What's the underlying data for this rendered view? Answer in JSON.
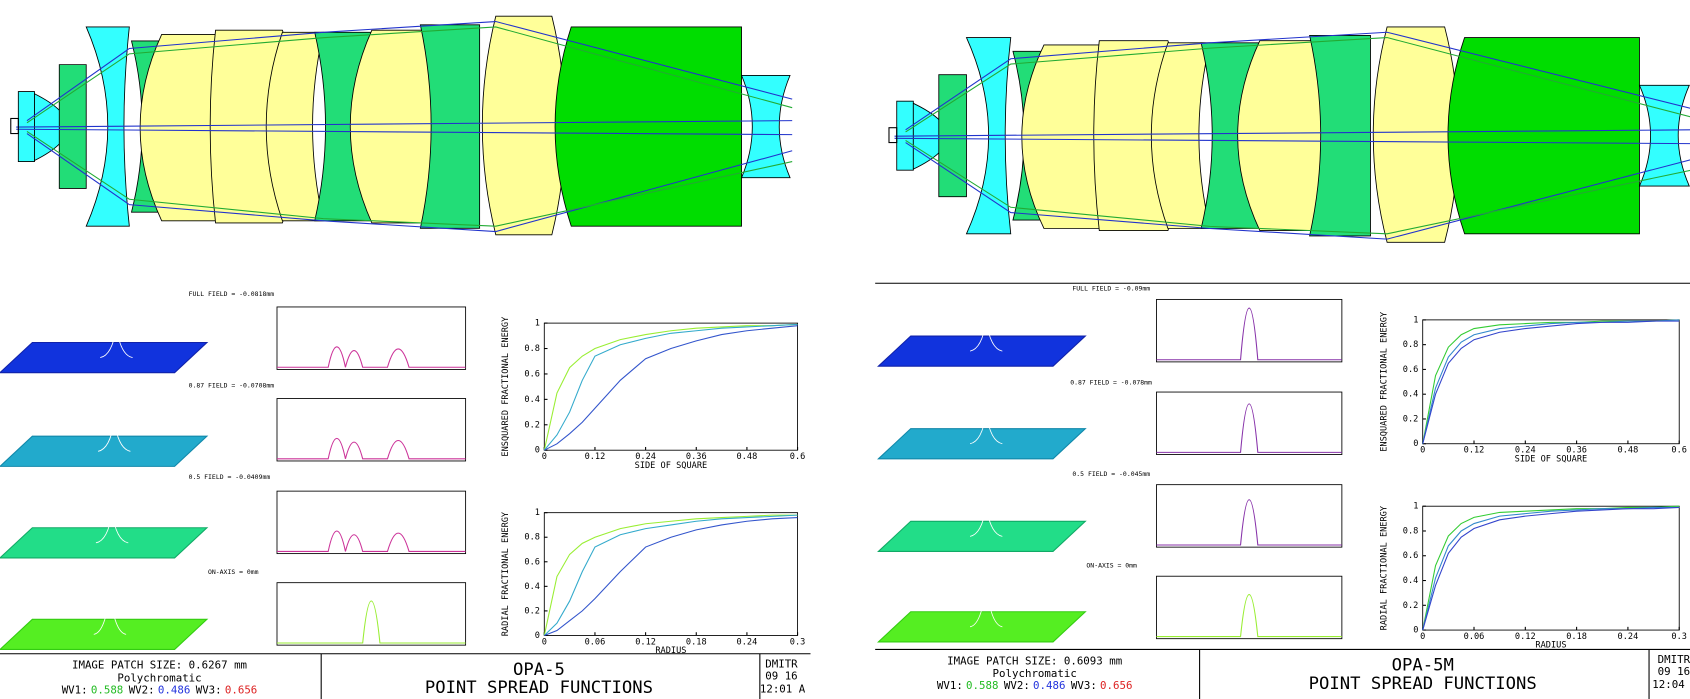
{
  "panels": [
    {
      "fields": [
        "FULL FIELD = -0.0818mm",
        "0.87 FIELD = -0.0708mm",
        "0.5 FIELD = -0.0409mm",
        "ON-AXIS = 0mm"
      ],
      "footer": {
        "patch": "IMAGE PATCH SIZE: 0.6267 mm",
        "mode": "Polychromatic",
        "wavelengths": [
          {
            "label": "WV1:",
            "value": "0.588",
            "color": "#22bb22"
          },
          {
            "label": "WV2:",
            "value": "0.486",
            "color": "#2233dd"
          },
          {
            "label": "WV3:",
            "value": "0.656",
            "color": "#dd2222"
          }
        ],
        "title": "OPA-5",
        "subtitle": "POINT SPREAD FUNCTIONS",
        "author": "DMITR",
        "date": "09  16",
        "time": "12:01 A"
      }
    },
    {
      "fields": [
        "FULL FIELD = -0.09mm",
        "0.87 FIELD = -0.078mm",
        "0.5 FIELD = -0.045mm",
        "ON-AXIS = 0mm"
      ],
      "footer": {
        "patch": "IMAGE PATCH SIZE: 0.6093 mm",
        "mode": "Polychromatic",
        "wavelengths": [
          {
            "label": "WV1:",
            "value": "0.588",
            "color": "#22bb22"
          },
          {
            "label": "WV2:",
            "value": "0.486",
            "color": "#2233dd"
          },
          {
            "label": "WV3:",
            "value": "0.656",
            "color": "#dd2222"
          }
        ],
        "title": "OPA-5M",
        "subtitle": "POINT SPREAD FUNCTIONS",
        "author": "DMITR",
        "date": "09  16",
        "time": "12:04 A"
      }
    }
  ],
  "chart_data": [
    {
      "type": "line",
      "xlabel": "SIDE OF SQUARE",
      "ylabel": "ENSQUARED FRACTIONAL ENERGY",
      "x": [
        0,
        0.03,
        0.06,
        0.09,
        0.12,
        0.18,
        0.24,
        0.3,
        0.36,
        0.42,
        0.48,
        0.54,
        0.6
      ],
      "xlim": [
        0,
        0.6
      ],
      "ylim": [
        0,
        1
      ],
      "xticks": [
        0,
        0.12,
        0.24,
        0.36,
        0.48,
        0.6
      ],
      "yticks": [
        0,
        0.2,
        0.4,
        0.6,
        0.8,
        1
      ],
      "series": [
        {
          "color": "#99ee33",
          "values": [
            0,
            0.45,
            0.65,
            0.74,
            0.8,
            0.87,
            0.91,
            0.94,
            0.96,
            0.97,
            0.98,
            0.98,
            0.99
          ]
        },
        {
          "color": "#33aacc",
          "values": [
            0,
            0.12,
            0.3,
            0.55,
            0.74,
            0.83,
            0.88,
            0.92,
            0.94,
            0.96,
            0.97,
            0.98,
            0.99
          ]
        },
        {
          "color": "#3355cc",
          "values": [
            0,
            0.05,
            0.13,
            0.22,
            0.33,
            0.55,
            0.72,
            0.8,
            0.86,
            0.91,
            0.94,
            0.96,
            0.98
          ]
        }
      ]
    },
    {
      "type": "line",
      "xlabel": "RADIUS",
      "ylabel": "RADIAL FRACTIONAL ENERGY",
      "x": [
        0,
        0.015,
        0.03,
        0.045,
        0.06,
        0.09,
        0.12,
        0.15,
        0.18,
        0.21,
        0.24,
        0.27,
        0.3
      ],
      "xlim": [
        0,
        0.3
      ],
      "ylim": [
        0,
        1
      ],
      "xticks": [
        0,
        0.06,
        0.12,
        0.18,
        0.24,
        0.3
      ],
      "yticks": [
        0,
        0.2,
        0.4,
        0.6,
        0.8,
        1
      ],
      "series": [
        {
          "color": "#99ee33",
          "values": [
            0,
            0.48,
            0.66,
            0.75,
            0.8,
            0.87,
            0.91,
            0.93,
            0.95,
            0.96,
            0.97,
            0.98,
            0.98
          ]
        },
        {
          "color": "#33aacc",
          "values": [
            0,
            0.1,
            0.28,
            0.52,
            0.72,
            0.82,
            0.87,
            0.9,
            0.93,
            0.95,
            0.96,
            0.97,
            0.98
          ]
        },
        {
          "color": "#3355cc",
          "values": [
            0,
            0.04,
            0.12,
            0.2,
            0.3,
            0.52,
            0.72,
            0.8,
            0.86,
            0.9,
            0.93,
            0.95,
            0.96
          ]
        }
      ]
    },
    {
      "type": "line",
      "xlabel": "SIDE OF SQUARE",
      "ylabel": "ENSQUARED FRACTIONAL ENERGY",
      "x": [
        0,
        0.03,
        0.06,
        0.09,
        0.12,
        0.18,
        0.24,
        0.3,
        0.36,
        0.42,
        0.48,
        0.54,
        0.6
      ],
      "xlim": [
        0,
        0.6
      ],
      "ylim": [
        0,
        1
      ],
      "xticks": [
        0,
        0.12,
        0.24,
        0.36,
        0.48,
        0.6
      ],
      "yticks": [
        0,
        0.2,
        0.4,
        0.6,
        0.8,
        1
      ],
      "series": [
        {
          "color": "#33cc33",
          "values": [
            0,
            0.55,
            0.78,
            0.88,
            0.93,
            0.96,
            0.97,
            0.98,
            0.98,
            0.99,
            0.99,
            0.99,
            1
          ]
        },
        {
          "color": "#3388cc",
          "values": [
            0,
            0.45,
            0.7,
            0.82,
            0.88,
            0.93,
            0.95,
            0.97,
            0.98,
            0.98,
            0.99,
            0.99,
            1
          ]
        },
        {
          "color": "#3344cc",
          "values": [
            0,
            0.4,
            0.65,
            0.77,
            0.84,
            0.9,
            0.93,
            0.95,
            0.97,
            0.98,
            0.98,
            0.99,
            0.99
          ]
        }
      ]
    },
    {
      "type": "line",
      "xlabel": "RADIUS",
      "ylabel": "RADIAL FRACTIONAL ENERGY",
      "x": [
        0,
        0.015,
        0.03,
        0.045,
        0.06,
        0.09,
        0.12,
        0.15,
        0.18,
        0.21,
        0.24,
        0.27,
        0.3
      ],
      "xlim": [
        0,
        0.3
      ],
      "ylim": [
        0,
        1
      ],
      "xticks": [
        0,
        0.06,
        0.12,
        0.18,
        0.24,
        0.3
      ],
      "yticks": [
        0,
        0.2,
        0.4,
        0.6,
        0.8,
        1
      ],
      "series": [
        {
          "color": "#33cc33",
          "values": [
            0,
            0.52,
            0.76,
            0.86,
            0.91,
            0.95,
            0.96,
            0.97,
            0.98,
            0.98,
            0.99,
            0.99,
            1
          ]
        },
        {
          "color": "#3388cc",
          "values": [
            0,
            0.42,
            0.68,
            0.8,
            0.86,
            0.92,
            0.94,
            0.96,
            0.97,
            0.98,
            0.98,
            0.99,
            0.99
          ]
        },
        {
          "color": "#3344cc",
          "values": [
            0,
            0.36,
            0.62,
            0.75,
            0.82,
            0.89,
            0.92,
            0.94,
            0.96,
            0.97,
            0.98,
            0.98,
            0.99
          ]
        }
      ]
    }
  ]
}
